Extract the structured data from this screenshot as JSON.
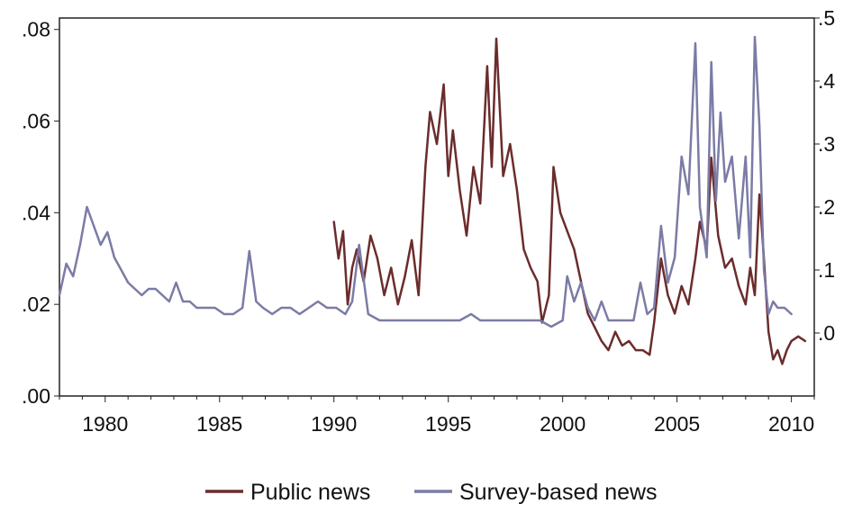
{
  "chart_data": {
    "type": "line",
    "title": "",
    "xlabel": "",
    "ylabel": "",
    "x_ticks": [
      "1980",
      "1985",
      "1990",
      "1995",
      "2000",
      "2005",
      "2010"
    ],
    "left_axis": {
      "ticks": [
        ".00",
        ".02",
        ".04",
        ".06",
        ".08"
      ],
      "ylim": [
        0.0,
        0.0825
      ]
    },
    "right_axis": {
      "ticks": [
        ".0",
        ".1",
        ".2",
        ".3",
        ".4",
        ".5"
      ],
      "ylim": [
        -0.1,
        0.5
      ]
    },
    "xlim": [
      1978.0,
      2011.0
    ],
    "legend_position": "bottom",
    "series": [
      {
        "name": "Public news",
        "axis": "left",
        "color": "#6b2c2c",
        "x": [
          1990.0,
          1990.2,
          1990.4,
          1990.6,
          1990.8,
          1991.0,
          1991.3,
          1991.6,
          1991.9,
          1992.2,
          1992.5,
          1992.8,
          1993.1,
          1993.4,
          1993.7,
          1994.0,
          1994.2,
          1994.5,
          1994.8,
          1995.0,
          1995.2,
          1995.5,
          1995.8,
          1996.1,
          1996.4,
          1996.7,
          1996.9,
          1997.1,
          1997.4,
          1997.7,
          1998.0,
          1998.3,
          1998.6,
          1998.9,
          1999.1,
          1999.4,
          1999.6,
          1999.9,
          2000.2,
          2000.5,
          2000.8,
          2001.1,
          2001.4,
          2001.7,
          2002.0,
          2002.3,
          2002.6,
          2002.9,
          2003.2,
          2003.5,
          2003.8,
          2004.0,
          2004.3,
          2004.6,
          2004.9,
          2005.2,
          2005.5,
          2005.8,
          2006.0,
          2006.3,
          2006.5,
          2006.8,
          2007.1,
          2007.4,
          2007.7,
          2008.0,
          2008.2,
          2008.4,
          2008.6,
          2008.8,
          2009.0,
          2009.2,
          2009.4,
          2009.6,
          2009.8,
          2010.0,
          2010.3,
          2010.6
        ],
        "values": [
          0.038,
          0.03,
          0.036,
          0.02,
          0.028,
          0.032,
          0.025,
          0.035,
          0.03,
          0.022,
          0.028,
          0.02,
          0.026,
          0.034,
          0.022,
          0.05,
          0.062,
          0.055,
          0.068,
          0.048,
          0.058,
          0.045,
          0.035,
          0.05,
          0.042,
          0.072,
          0.05,
          0.078,
          0.048,
          0.055,
          0.045,
          0.032,
          0.028,
          0.025,
          0.016,
          0.022,
          0.05,
          0.04,
          0.036,
          0.032,
          0.025,
          0.018,
          0.015,
          0.012,
          0.01,
          0.014,
          0.011,
          0.012,
          0.01,
          0.01,
          0.009,
          0.016,
          0.03,
          0.022,
          0.018,
          0.024,
          0.02,
          0.03,
          0.038,
          0.032,
          0.052,
          0.035,
          0.028,
          0.03,
          0.024,
          0.02,
          0.028,
          0.022,
          0.044,
          0.03,
          0.014,
          0.008,
          0.01,
          0.007,
          0.01,
          0.012,
          0.013,
          0.012
        ]
      },
      {
        "name": "Survey-based news",
        "axis": "right",
        "color": "#7b7ba6",
        "x": [
          1978.0,
          1978.3,
          1978.6,
          1978.9,
          1979.2,
          1979.5,
          1979.8,
          1980.1,
          1980.4,
          1980.7,
          1981.0,
          1981.3,
          1981.6,
          1981.9,
          1982.2,
          1982.5,
          1982.8,
          1983.1,
          1983.4,
          1983.7,
          1984.0,
          1984.4,
          1984.8,
          1985.2,
          1985.6,
          1986.0,
          1986.3,
          1986.6,
          1986.9,
          1987.3,
          1987.7,
          1988.1,
          1988.5,
          1988.9,
          1989.3,
          1989.7,
          1990.1,
          1990.5,
          1990.8,
          1991.1,
          1991.5,
          1992.0,
          1992.5,
          1993.0,
          1993.5,
          1994.0,
          1994.5,
          1995.0,
          1995.5,
          1996.0,
          1996.4,
          1996.8,
          1997.2,
          1997.6,
          1998.0,
          1998.5,
          1999.0,
          1999.5,
          2000.0,
          2000.2,
          2000.5,
          2000.8,
          2001.1,
          2001.4,
          2001.7,
          2002.0,
          2002.4,
          2002.8,
          2003.1,
          2003.4,
          2003.7,
          2004.0,
          2004.3,
          2004.6,
          2004.9,
          2005.2,
          2005.5,
          2005.8,
          2006.0,
          2006.3,
          2006.5,
          2006.7,
          2006.9,
          2007.1,
          2007.4,
          2007.7,
          2008.0,
          2008.2,
          2008.4,
          2008.6,
          2008.8,
          2009.0,
          2009.2,
          2009.4,
          2009.7,
          2010.0
        ],
        "values": [
          0.06,
          0.11,
          0.09,
          0.14,
          0.2,
          0.17,
          0.14,
          0.16,
          0.12,
          0.1,
          0.08,
          0.07,
          0.06,
          0.07,
          0.07,
          0.06,
          0.05,
          0.08,
          0.05,
          0.05,
          0.04,
          0.04,
          0.04,
          0.03,
          0.03,
          0.04,
          0.13,
          0.05,
          0.04,
          0.03,
          0.04,
          0.04,
          0.03,
          0.04,
          0.05,
          0.04,
          0.04,
          0.03,
          0.05,
          0.14,
          0.03,
          0.02,
          0.02,
          0.02,
          0.02,
          0.02,
          0.02,
          0.02,
          0.02,
          0.03,
          0.02,
          0.02,
          0.02,
          0.02,
          0.02,
          0.02,
          0.02,
          0.01,
          0.02,
          0.09,
          0.05,
          0.08,
          0.04,
          0.02,
          0.05,
          0.02,
          0.02,
          0.02,
          0.02,
          0.08,
          0.03,
          0.04,
          0.17,
          0.08,
          0.12,
          0.28,
          0.22,
          0.46,
          0.2,
          0.12,
          0.43,
          0.21,
          0.35,
          0.24,
          0.28,
          0.15,
          0.28,
          0.12,
          0.47,
          0.33,
          0.1,
          0.03,
          0.05,
          0.04,
          0.04,
          0.03
        ]
      }
    ]
  }
}
